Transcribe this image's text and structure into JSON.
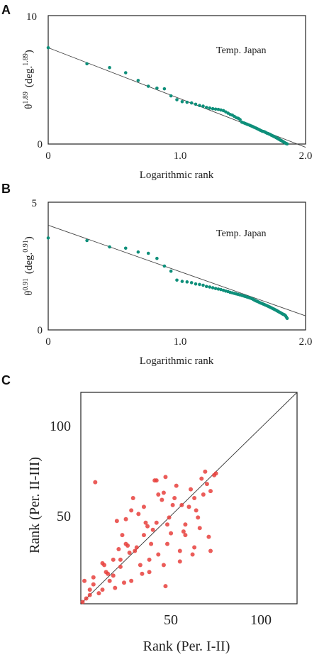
{
  "chart_data": [
    {
      "panel": "A",
      "type": "scatter",
      "annotation": "Temp. Japan",
      "xlabel": "Logarithmic rank",
      "ylabel_base": "θ",
      "ylabel_exp": "1.89",
      "ylabel_unit_base": "(deg.",
      "ylabel_unit_exp": "1.89",
      "ylabel_unit_close": ")",
      "xlim": [
        0,
        2.0
      ],
      "ylim": [
        0,
        10
      ],
      "x_ticks": [
        0,
        1.0,
        2.0
      ],
      "x_tick_labels": [
        "0",
        "1.0",
        "2.0"
      ],
      "y_ticks": [
        0,
        10
      ],
      "y_tick_labels": [
        "0",
        "10"
      ],
      "point_color": "#0e8f7a",
      "fit_line": {
        "x": [
          0,
          2.0
        ],
        "y": [
          7.5,
          -0.25
        ]
      },
      "points": [
        [
          0.0,
          7.5
        ],
        [
          0.301,
          6.25
        ],
        [
          0.477,
          5.95
        ],
        [
          0.602,
          5.55
        ],
        [
          0.699,
          4.95
        ],
        [
          0.778,
          4.5
        ],
        [
          0.845,
          4.35
        ],
        [
          0.903,
          4.3
        ],
        [
          0.954,
          3.75
        ],
        [
          1.0,
          3.45
        ],
        [
          1.041,
          3.3
        ],
        [
          1.079,
          3.25
        ],
        [
          1.114,
          3.2
        ],
        [
          1.146,
          3.1
        ],
        [
          1.176,
          3.0
        ],
        [
          1.204,
          2.95
        ],
        [
          1.23,
          2.85
        ],
        [
          1.255,
          2.8
        ],
        [
          1.279,
          2.75
        ],
        [
          1.301,
          2.72
        ],
        [
          1.322,
          2.7
        ],
        [
          1.342,
          2.65
        ],
        [
          1.362,
          2.6
        ],
        [
          1.38,
          2.5
        ],
        [
          1.398,
          2.4
        ],
        [
          1.415,
          2.3
        ],
        [
          1.431,
          2.25
        ],
        [
          1.447,
          2.15
        ],
        [
          1.462,
          2.05
        ],
        [
          1.477,
          2.0
        ],
        [
          1.491,
          1.9
        ],
        [
          1.505,
          1.7
        ],
        [
          1.519,
          1.65
        ],
        [
          1.531,
          1.6
        ],
        [
          1.544,
          1.55
        ],
        [
          1.556,
          1.5
        ],
        [
          1.568,
          1.45
        ],
        [
          1.58,
          1.4
        ],
        [
          1.591,
          1.35
        ],
        [
          1.602,
          1.3
        ],
        [
          1.613,
          1.25
        ],
        [
          1.623,
          1.2
        ],
        [
          1.633,
          1.15
        ],
        [
          1.643,
          1.1
        ],
        [
          1.653,
          1.05
        ],
        [
          1.663,
          1.0
        ],
        [
          1.672,
          0.98
        ],
        [
          1.681,
          0.95
        ],
        [
          1.69,
          0.9
        ],
        [
          1.699,
          0.85
        ],
        [
          1.708,
          0.82
        ],
        [
          1.716,
          0.78
        ],
        [
          1.724,
          0.75
        ],
        [
          1.732,
          0.7
        ],
        [
          1.74,
          0.66
        ],
        [
          1.748,
          0.62
        ],
        [
          1.756,
          0.58
        ],
        [
          1.763,
          0.55
        ],
        [
          1.771,
          0.5
        ],
        [
          1.778,
          0.46
        ],
        [
          1.785,
          0.42
        ],
        [
          1.792,
          0.38
        ],
        [
          1.799,
          0.34
        ],
        [
          1.806,
          0.3
        ],
        [
          1.813,
          0.26
        ],
        [
          1.82,
          0.22
        ],
        [
          1.826,
          0.18
        ],
        [
          1.833,
          0.14
        ],
        [
          1.839,
          0.1
        ],
        [
          1.845,
          0.06
        ],
        [
          1.851,
          0.03
        ],
        [
          1.857,
          0.01
        ]
      ]
    },
    {
      "panel": "B",
      "type": "scatter",
      "annotation": "Temp. Japan",
      "xlabel": "Logarithmic rank",
      "ylabel_base": "θ",
      "ylabel_exp": "0.91",
      "ylabel_unit_base": "(deg.",
      "ylabel_unit_exp": "0.91",
      "ylabel_unit_close": ")",
      "xlim": [
        0,
        2.0
      ],
      "ylim": [
        0,
        5
      ],
      "x_ticks": [
        0,
        1.0,
        2.0
      ],
      "x_tick_labels": [
        "0",
        "1.0",
        "2.0"
      ],
      "y_ticks": [
        0,
        5
      ],
      "y_tick_labels": [
        "0",
        "5"
      ],
      "point_color": "#0e8f7a",
      "fit_line": {
        "x": [
          0,
          2.0
        ],
        "y": [
          4.1,
          0.55
        ]
      },
      "points": [
        [
          0.0,
          3.6
        ],
        [
          0.301,
          3.5
        ],
        [
          0.477,
          3.25
        ],
        [
          0.602,
          3.2
        ],
        [
          0.699,
          3.05
        ],
        [
          0.778,
          3.0
        ],
        [
          0.845,
          2.8
        ],
        [
          0.903,
          2.5
        ],
        [
          0.954,
          2.3
        ],
        [
          1.0,
          1.95
        ],
        [
          1.041,
          1.9
        ],
        [
          1.079,
          1.88
        ],
        [
          1.114,
          1.85
        ],
        [
          1.146,
          1.8
        ],
        [
          1.176,
          1.78
        ],
        [
          1.204,
          1.75
        ],
        [
          1.23,
          1.7
        ],
        [
          1.255,
          1.68
        ],
        [
          1.279,
          1.65
        ],
        [
          1.301,
          1.62
        ],
        [
          1.322,
          1.6
        ],
        [
          1.342,
          1.58
        ],
        [
          1.362,
          1.55
        ],
        [
          1.38,
          1.52
        ],
        [
          1.398,
          1.5
        ],
        [
          1.415,
          1.47
        ],
        [
          1.431,
          1.45
        ],
        [
          1.447,
          1.43
        ],
        [
          1.462,
          1.41
        ],
        [
          1.477,
          1.39
        ],
        [
          1.491,
          1.37
        ],
        [
          1.505,
          1.35
        ],
        [
          1.519,
          1.33
        ],
        [
          1.531,
          1.31
        ],
        [
          1.544,
          1.29
        ],
        [
          1.556,
          1.27
        ],
        [
          1.568,
          1.25
        ],
        [
          1.58,
          1.23
        ],
        [
          1.591,
          1.2
        ],
        [
          1.602,
          1.17
        ],
        [
          1.613,
          1.14
        ],
        [
          1.623,
          1.12
        ],
        [
          1.633,
          1.1
        ],
        [
          1.643,
          1.07
        ],
        [
          1.653,
          1.05
        ],
        [
          1.663,
          1.03
        ],
        [
          1.672,
          1.01
        ],
        [
          1.681,
          0.99
        ],
        [
          1.69,
          0.97
        ],
        [
          1.699,
          0.95
        ],
        [
          1.708,
          0.93
        ],
        [
          1.716,
          0.91
        ],
        [
          1.724,
          0.89
        ],
        [
          1.732,
          0.87
        ],
        [
          1.74,
          0.85
        ],
        [
          1.748,
          0.83
        ],
        [
          1.756,
          0.81
        ],
        [
          1.763,
          0.79
        ],
        [
          1.771,
          0.77
        ],
        [
          1.778,
          0.75
        ],
        [
          1.785,
          0.73
        ],
        [
          1.792,
          0.71
        ],
        [
          1.799,
          0.69
        ],
        [
          1.806,
          0.67
        ],
        [
          1.813,
          0.65
        ],
        [
          1.82,
          0.63
        ],
        [
          1.826,
          0.61
        ],
        [
          1.833,
          0.6
        ],
        [
          1.839,
          0.58
        ],
        [
          1.845,
          0.55
        ],
        [
          1.851,
          0.5
        ],
        [
          1.857,
          0.45
        ]
      ]
    },
    {
      "panel": "C",
      "type": "scatter",
      "xlabel": "Rank (Per. I-II)",
      "ylabel": "Rank (Per. II-III)",
      "xlim": [
        0,
        120
      ],
      "ylim": [
        0,
        120
      ],
      "x_ticks": [
        50,
        100
      ],
      "x_tick_labels": [
        "50",
        "100"
      ],
      "y_ticks": [
        50,
        100
      ],
      "y_tick_labels": [
        "50",
        "100"
      ],
      "point_color": "#e8403c",
      "diagonal": {
        "x": [
          0,
          120
        ],
        "y": [
          0,
          120
        ]
      },
      "points": [
        [
          1,
          1
        ],
        [
          2,
          13
        ],
        [
          3,
          3
        ],
        [
          5,
          5
        ],
        [
          5,
          8
        ],
        [
          7,
          11
        ],
        [
          7,
          15
        ],
        [
          8,
          69
        ],
        [
          10,
          6
        ],
        [
          12,
          8
        ],
        [
          12,
          23
        ],
        [
          13,
          22
        ],
        [
          14,
          18
        ],
        [
          15,
          17
        ],
        [
          16,
          13
        ],
        [
          18,
          16
        ],
        [
          18,
          25
        ],
        [
          19,
          9
        ],
        [
          20,
          47
        ],
        [
          21,
          31
        ],
        [
          22,
          21
        ],
        [
          22,
          25
        ],
        [
          23,
          39
        ],
        [
          24,
          12
        ],
        [
          25,
          34
        ],
        [
          25,
          48
        ],
        [
          26,
          33
        ],
        [
          27,
          29
        ],
        [
          28,
          13
        ],
        [
          28,
          53
        ],
        [
          29,
          60
        ],
        [
          30,
          30
        ],
        [
          31,
          32
        ],
        [
          32,
          51
        ],
        [
          33,
          22
        ],
        [
          34,
          17
        ],
        [
          35,
          39
        ],
        [
          35,
          55
        ],
        [
          36,
          46
        ],
        [
          37,
          44
        ],
        [
          38,
          18
        ],
        [
          38,
          25
        ],
        [
          39,
          34
        ],
        [
          40,
          42
        ],
        [
          41,
          70
        ],
        [
          42,
          70
        ],
        [
          42,
          46
        ],
        [
          43,
          62
        ],
        [
          43,
          28
        ],
        [
          45,
          59
        ],
        [
          46,
          63
        ],
        [
          46,
          22
        ],
        [
          47,
          72
        ],
        [
          47,
          10
        ],
        [
          48,
          34
        ],
        [
          48,
          45
        ],
        [
          49,
          49
        ],
        [
          50,
          40
        ],
        [
          51,
          56
        ],
        [
          52,
          60
        ],
        [
          53,
          67
        ],
        [
          55,
          30
        ],
        [
          55,
          24
        ],
        [
          56,
          56
        ],
        [
          57,
          41
        ],
        [
          58,
          45
        ],
        [
          58,
          39
        ],
        [
          60,
          55
        ],
        [
          61,
          65
        ],
        [
          62,
          28
        ],
        [
          63,
          60
        ],
        [
          63,
          32
        ],
        [
          64,
          53
        ],
        [
          65,
          49
        ],
        [
          66,
          43
        ],
        [
          67,
          71
        ],
        [
          68,
          62
        ],
        [
          69,
          75
        ],
        [
          70,
          68
        ],
        [
          71,
          38
        ],
        [
          72,
          64
        ],
        [
          72,
          30
        ],
        [
          74,
          73
        ],
        [
          75,
          74
        ]
      ]
    }
  ]
}
